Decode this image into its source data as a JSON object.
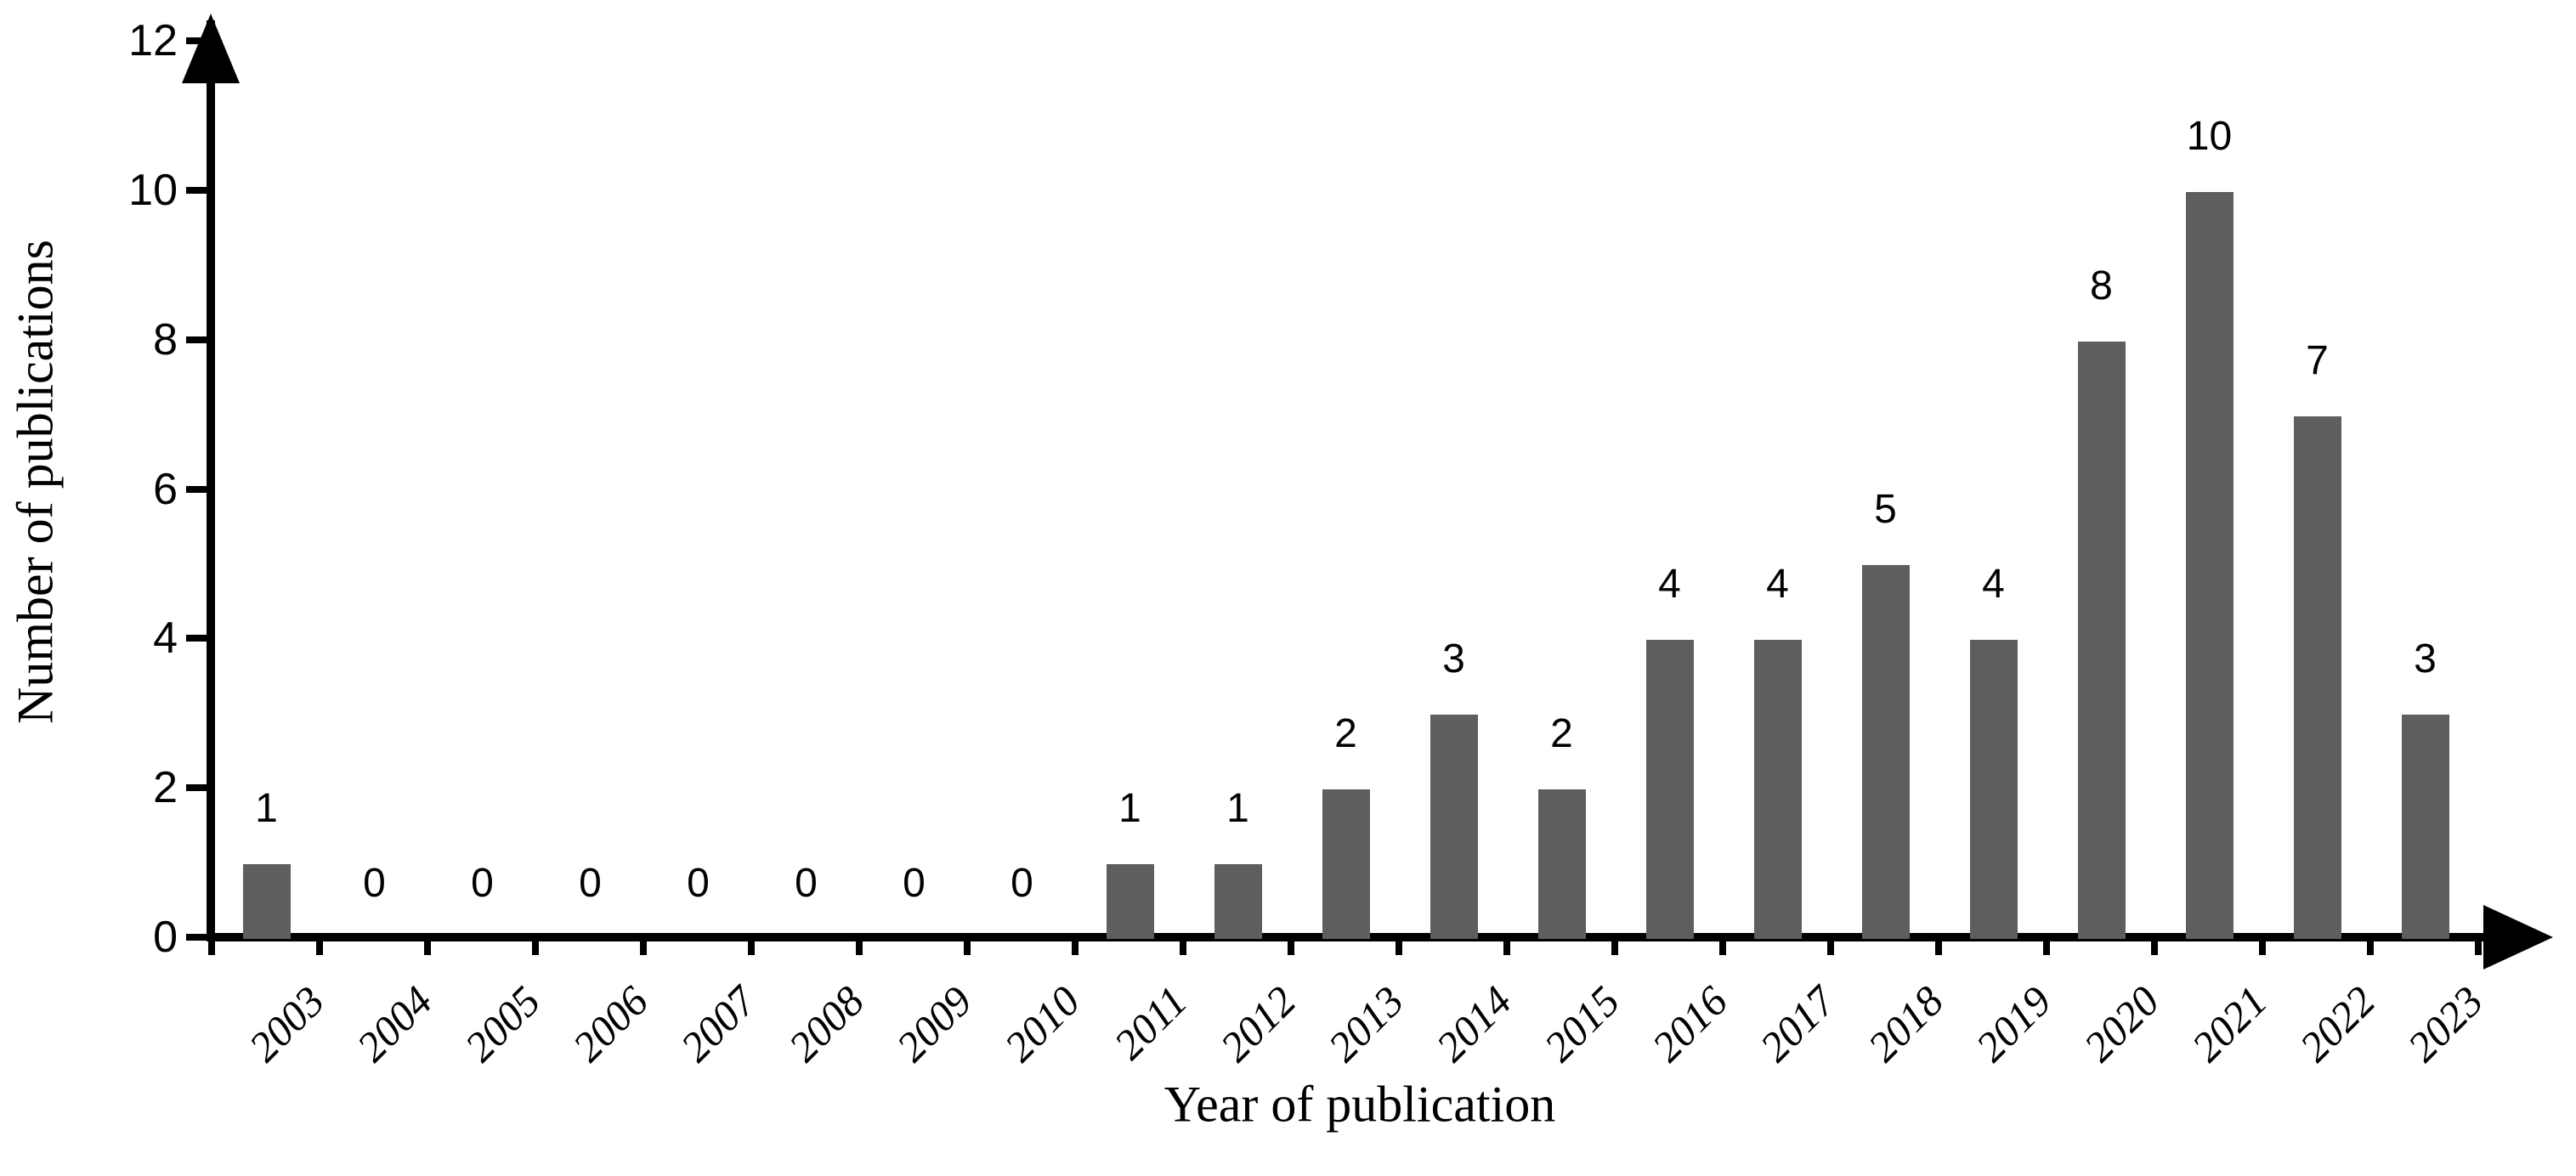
{
  "chart_data": {
    "type": "bar",
    "title": "",
    "xlabel": "Year of publication",
    "ylabel": "Number of publications",
    "categories": [
      "2003",
      "2004",
      "2005",
      "2006",
      "2007",
      "2008",
      "2009",
      "2010",
      "2011",
      "2012",
      "2013",
      "2014",
      "2015",
      "2016",
      "2017",
      "2018",
      "2019",
      "2020",
      "2021",
      "2022",
      "2023"
    ],
    "values": [
      1,
      0,
      0,
      0,
      0,
      0,
      0,
      0,
      1,
      1,
      2,
      3,
      2,
      4,
      4,
      5,
      4,
      8,
      10,
      7,
      3
    ],
    "data_labels_shown": true,
    "ylim": [
      0,
      12
    ],
    "yticks": [
      0,
      2,
      4,
      6,
      8,
      10,
      12
    ],
    "grid": false,
    "legend": null,
    "bar_color": "#5E5E5E",
    "axis_color": "#000000",
    "background_color": "#FFFFFF",
    "axis_arrows": [
      "y-top",
      "x-right"
    ]
  }
}
